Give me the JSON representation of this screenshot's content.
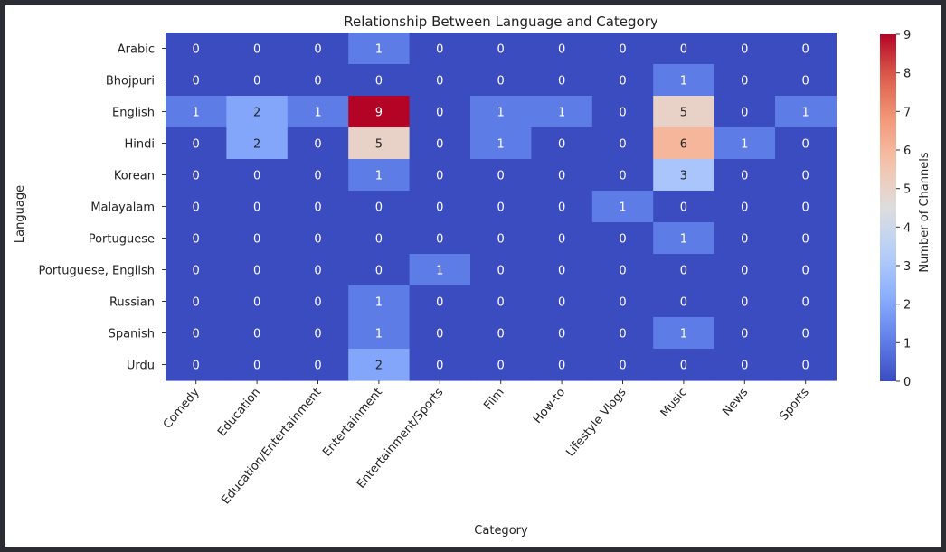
{
  "chart_data": {
    "type": "heatmap",
    "title": "Relationship Between Language and Category",
    "xlabel": "Category",
    "ylabel": "Language",
    "colorbar_label": "Number of Channels",
    "colormap": "coolwarm",
    "vmin": 0,
    "vmax": 9,
    "colorbar_ticks": [
      0,
      1,
      2,
      3,
      4,
      5,
      6,
      7,
      8,
      9
    ],
    "x_categories": [
      "Comedy",
      "Education",
      "Education/Entertainment",
      "Entertainment",
      "Entertainment/Sports",
      "Film",
      "How-to",
      "Lifestyle Vlogs",
      "Music",
      "News",
      "Sports"
    ],
    "y_categories": [
      "Arabic",
      "Bhojpuri",
      "English",
      "Hindi",
      "Korean",
      "Malayalam",
      "Portuguese",
      "Portuguese, English",
      "Russian",
      "Spanish",
      "Urdu"
    ],
    "values": [
      [
        0,
        0,
        0,
        1,
        0,
        0,
        0,
        0,
        0,
        0,
        0
      ],
      [
        0,
        0,
        0,
        0,
        0,
        0,
        0,
        0,
        1,
        0,
        0
      ],
      [
        1,
        2,
        1,
        9,
        0,
        1,
        1,
        0,
        5,
        0,
        1
      ],
      [
        0,
        2,
        0,
        5,
        0,
        1,
        0,
        0,
        6,
        1,
        0
      ],
      [
        0,
        0,
        0,
        1,
        0,
        0,
        0,
        0,
        3,
        0,
        0
      ],
      [
        0,
        0,
        0,
        0,
        0,
        0,
        0,
        1,
        0,
        0,
        0
      ],
      [
        0,
        0,
        0,
        0,
        0,
        0,
        0,
        0,
        1,
        0,
        0
      ],
      [
        0,
        0,
        0,
        0,
        1,
        0,
        0,
        0,
        0,
        0,
        0
      ],
      [
        0,
        0,
        0,
        1,
        0,
        0,
        0,
        0,
        0,
        0,
        0
      ],
      [
        0,
        0,
        0,
        1,
        0,
        0,
        0,
        0,
        1,
        0,
        0
      ],
      [
        0,
        0,
        0,
        2,
        0,
        0,
        0,
        0,
        0,
        0,
        0
      ]
    ]
  }
}
